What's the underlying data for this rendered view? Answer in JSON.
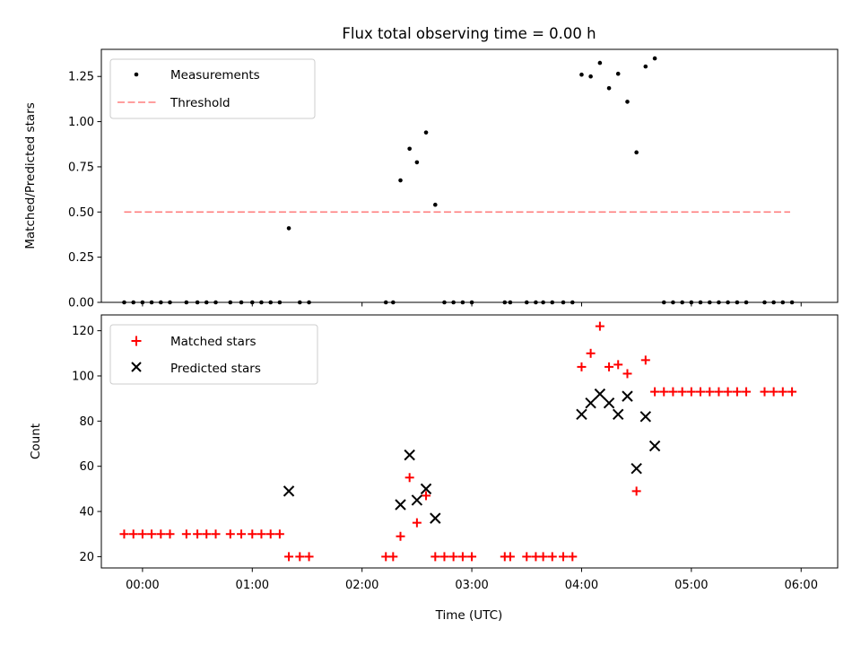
{
  "chart_data": {
    "type": "scatter",
    "title": "Flux total observing time = 0.00 h",
    "xlabel": "Time (UTC)",
    "xlim": [
      -0.375,
      6.333
    ],
    "x_ticks": [
      {
        "value": 0,
        "label": "00:00"
      },
      {
        "value": 1,
        "label": "01:00"
      },
      {
        "value": 2,
        "label": "02:00"
      },
      {
        "value": 3,
        "label": "03:00"
      },
      {
        "value": 4,
        "label": "04:00"
      },
      {
        "value": 5,
        "label": "05:00"
      },
      {
        "value": 6,
        "label": "06:00"
      }
    ],
    "colors": {
      "measurements": "#000000",
      "threshold": "#ff7f7f",
      "matched": "#ff0000",
      "predicted": "#000000"
    },
    "top_panel": {
      "ylabel": "Matched/Predicted stars",
      "ylim": [
        0,
        1.4
      ],
      "y_ticks": [
        {
          "value": 0.0,
          "label": "0.00"
        },
        {
          "value": 0.25,
          "label": "0.25"
        },
        {
          "value": 0.5,
          "label": "0.50"
        },
        {
          "value": 0.75,
          "label": "0.75"
        },
        {
          "value": 1.0,
          "label": "1.00"
        },
        {
          "value": 1.25,
          "label": "1.25"
        }
      ],
      "legend": [
        {
          "key": "measurements",
          "label": "Measurements"
        },
        {
          "key": "threshold",
          "label": "Threshold"
        }
      ],
      "threshold": {
        "value": 0.5,
        "x_start": -0.167,
        "x_end": 5.9
      },
      "measurements": {
        "x": [
          -0.167,
          -0.083,
          0.0,
          0.083,
          0.167,
          0.25,
          0.4,
          0.5,
          0.583,
          0.667,
          0.8,
          0.9,
          1.0,
          1.083,
          1.167,
          1.25,
          1.333,
          1.433,
          1.517,
          2.217,
          2.283,
          2.35,
          2.433,
          2.5,
          2.583,
          2.667,
          2.75,
          2.833,
          2.917,
          3.0,
          3.3,
          3.35,
          3.5,
          3.583,
          3.65,
          3.733,
          3.833,
          3.917,
          4.0,
          4.083,
          4.167,
          4.25,
          4.333,
          4.417,
          4.5,
          4.583,
          4.667,
          4.75,
          4.833,
          4.917,
          5.0,
          5.083,
          5.167,
          5.25,
          5.333,
          5.417,
          5.5,
          5.667,
          5.75,
          5.833,
          5.917
        ],
        "y": [
          0,
          0,
          0,
          0,
          0,
          0,
          0,
          0,
          0,
          0,
          0,
          0,
          0,
          0,
          0,
          0,
          0.41,
          0,
          0,
          0,
          0,
          0.675,
          0.85,
          0.775,
          0.94,
          0.54,
          0,
          0,
          0,
          0,
          0,
          0,
          0,
          0,
          0,
          0,
          0,
          0,
          1.26,
          1.25,
          1.325,
          1.185,
          1.265,
          1.11,
          0.83,
          1.305,
          1.35,
          0,
          0,
          0,
          0,
          0,
          0,
          0,
          0,
          0,
          0,
          0,
          0,
          0,
          0
        ]
      }
    },
    "bottom_panel": {
      "ylabel": "Count",
      "ylim": [
        15,
        127
      ],
      "y_ticks": [
        {
          "value": 20,
          "label": "20"
        },
        {
          "value": 40,
          "label": "40"
        },
        {
          "value": 60,
          "label": "60"
        },
        {
          "value": 80,
          "label": "80"
        },
        {
          "value": 100,
          "label": "100"
        },
        {
          "value": 120,
          "label": "120"
        }
      ],
      "legend": [
        {
          "key": "matched",
          "label": "Matched stars"
        },
        {
          "key": "predicted",
          "label": "Predicted stars"
        }
      ],
      "series": [
        {
          "name": "Matched stars",
          "key": "matched",
          "x": [
            -0.167,
            -0.083,
            0.0,
            0.083,
            0.167,
            0.25,
            0.4,
            0.5,
            0.583,
            0.667,
            0.8,
            0.9,
            1.0,
            1.083,
            1.167,
            1.25,
            1.333,
            1.433,
            1.517,
            2.217,
            2.283,
            2.35,
            2.433,
            2.5,
            2.583,
            2.667,
            2.75,
            2.833,
            2.917,
            3.0,
            3.3,
            3.35,
            3.5,
            3.583,
            3.65,
            3.733,
            3.833,
            3.917,
            4.0,
            4.083,
            4.167,
            4.25,
            4.333,
            4.417,
            4.5,
            4.583,
            4.667,
            4.75,
            4.833,
            4.917,
            5.0,
            5.083,
            5.167,
            5.25,
            5.333,
            5.417,
            5.5,
            5.667,
            5.75,
            5.833,
            5.917
          ],
          "y": [
            30,
            30,
            30,
            30,
            30,
            30,
            30,
            30,
            30,
            30,
            30,
            30,
            30,
            30,
            30,
            30,
            20,
            20,
            20,
            20,
            20,
            29,
            55,
            35,
            47,
            20,
            20,
            20,
            20,
            20,
            20,
            20,
            20,
            20,
            20,
            20,
            20,
            20,
            104,
            110,
            122,
            104,
            105,
            101,
            49,
            107,
            93,
            93,
            93,
            93,
            93,
            93,
            93,
            93,
            93,
            93,
            93,
            93,
            93,
            93,
            93
          ]
        },
        {
          "name": "Predicted stars",
          "key": "predicted",
          "x": [
            1.333,
            2.35,
            2.433,
            2.5,
            2.583,
            2.667,
            4.0,
            4.083,
            4.167,
            4.25,
            4.333,
            4.417,
            4.5,
            4.583,
            4.667
          ],
          "y": [
            49,
            43,
            65,
            45,
            50,
            37,
            83,
            88,
            92,
            88,
            83,
            91,
            59,
            82,
            69
          ]
        }
      ]
    }
  }
}
